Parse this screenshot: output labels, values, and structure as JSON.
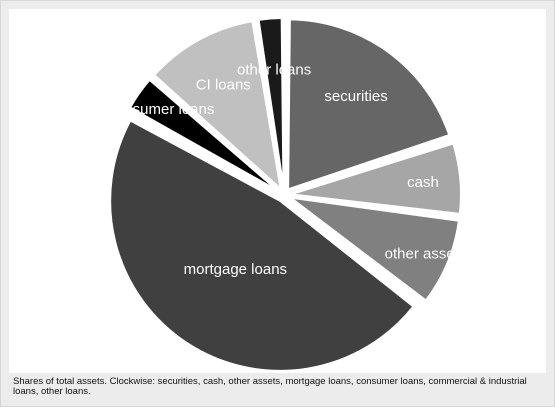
{
  "chart_data": {
    "type": "pie",
    "title": "",
    "direction": "clockwise",
    "start": "top",
    "exploded": true,
    "slices": [
      {
        "label": "securities",
        "value": 20.0,
        "color": "#666666"
      },
      {
        "label": "cash",
        "value": 7.0,
        "color": "#a6a6a6"
      },
      {
        "label": "other assets",
        "value": 8.5,
        "color": "#808080"
      },
      {
        "label": "mortgage loans",
        "value": 47.5,
        "color": "#404040"
      },
      {
        "label": "consumer loans",
        "value": 3.5,
        "color": "#000000"
      },
      {
        "label": "CI loans",
        "value": 11.0,
        "color": "#c0c0c0"
      },
      {
        "label": "other loans",
        "value": 2.5,
        "color": "#1a1a1a"
      }
    ]
  },
  "caption": "Shares of total assets. Clockwise: securities, cash, other assets, mortgage loans, consumer loans, commercial & industrial loans, other loans."
}
